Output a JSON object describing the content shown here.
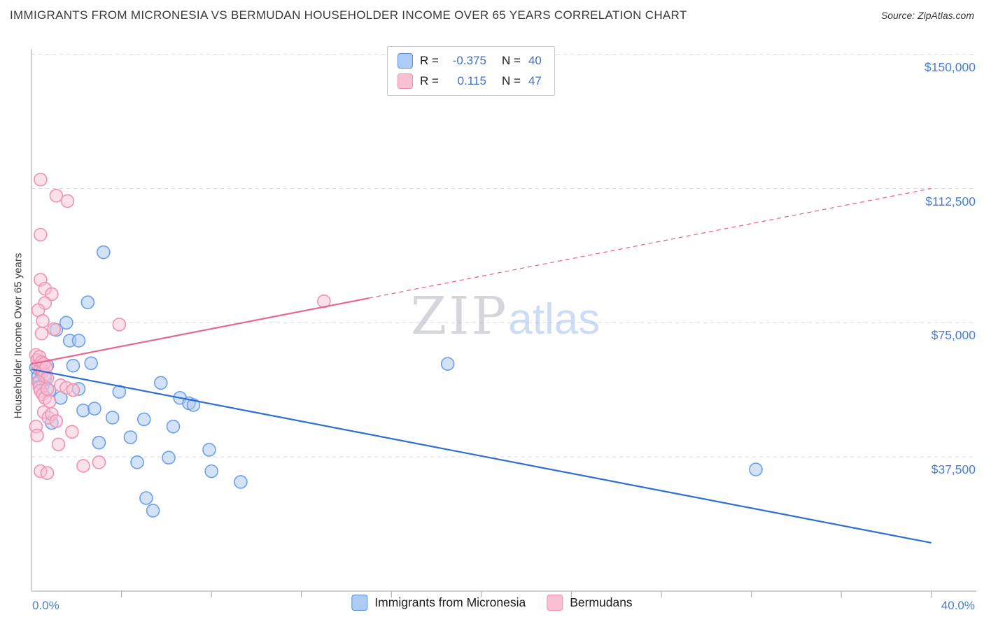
{
  "header": {
    "title": "IMMIGRANTS FROM MICRONESIA VS BERMUDAN HOUSEHOLDER INCOME OVER 65 YEARS CORRELATION CHART",
    "source": "Source: ZipAtlas.com"
  },
  "axes": {
    "y_label": "Householder Income Over 65 years",
    "y_ticks": [
      {
        "label": "$150,000",
        "value": 150000
      },
      {
        "label": "$112,500",
        "value": 112500
      },
      {
        "label": "$75,000",
        "value": 75000
      },
      {
        "label": "$37,500",
        "value": 37500
      }
    ],
    "x_min_label": "0.0%",
    "x_max_label": "40.0%"
  },
  "legend_box": {
    "rows": [
      {
        "r_label": "R =",
        "r": "-0.375",
        "n_label": "N =",
        "n": "40",
        "series": "Immigrants from Micronesia"
      },
      {
        "r_label": "R =",
        "r": "0.115",
        "n_label": "N =",
        "n": "47",
        "series": "Bermudans"
      }
    ]
  },
  "bottom_legend": [
    {
      "label": "Immigrants from Micronesia",
      "color": "blue"
    },
    {
      "label": "Bermudans",
      "color": "pink"
    }
  ],
  "watermark": {
    "part1": "ZIP",
    "part2": "atlas"
  },
  "colors": {
    "axis_text_blue": "#4a7fd4",
    "value_blue": "#3d6fc7",
    "blue_point_stroke": "#6d9eeb",
    "blue_point_fill": "#a8c7f0",
    "blue_trend": "#2e6fd0",
    "pink_point_stroke": "#f191b4",
    "pink_point_fill": "#f8c3d6",
    "pink_trend": "#e8678f",
    "gridline": "#dcdcdc",
    "axis_line": "#b5b5b5"
  },
  "chart_data": {
    "type": "scatter",
    "title": "Immigrants from Micronesia vs Bermudan Householder Income Over 65 years",
    "xlabel": "Immigrants from Micronesia (%)",
    "ylabel": "Householder Income Over 65 years ($)",
    "xlim": [
      0,
      40
    ],
    "ylim": [
      0,
      151500
    ],
    "x_overscan_max": 42,
    "grid": true,
    "legend_position": "top-center",
    "y_gridlines": [
      150000,
      112500,
      75000,
      37500
    ],
    "x_tick_step": 4,
    "series": [
      {
        "name": "Immigrants from Micronesia",
        "color": "#6d9eeb",
        "fill": "#a8c7f0",
        "trend_color": "#2e6fd0",
        "R": -0.375,
        "N": 40,
        "trend": {
          "x1": 0,
          "y1": 62000,
          "x2": 40,
          "y2": 13500,
          "solid_until_x": 40
        },
        "points": [
          [
            0.2,
            62500
          ],
          [
            0.3,
            60000
          ],
          [
            0.35,
            58500
          ],
          [
            0.45,
            61000
          ],
          [
            0.5,
            57500
          ],
          [
            0.6,
            59500
          ],
          [
            0.7,
            63000
          ],
          [
            0.8,
            56000
          ],
          [
            0.9,
            47000
          ],
          [
            1.1,
            73000
          ],
          [
            1.3,
            54000
          ],
          [
            1.55,
            75000
          ],
          [
            1.7,
            70000
          ],
          [
            1.85,
            63000
          ],
          [
            2.1,
            70000
          ],
          [
            2.1,
            56500
          ],
          [
            2.3,
            50500
          ],
          [
            2.5,
            80700
          ],
          [
            2.65,
            63700
          ],
          [
            2.8,
            51000
          ],
          [
            3.0,
            41500
          ],
          [
            3.2,
            94700
          ],
          [
            3.6,
            48500
          ],
          [
            3.9,
            55700
          ],
          [
            4.4,
            43000
          ],
          [
            4.7,
            36000
          ],
          [
            5.0,
            48000
          ],
          [
            5.1,
            26000
          ],
          [
            5.4,
            22500
          ],
          [
            5.75,
            58200
          ],
          [
            6.1,
            37300
          ],
          [
            6.3,
            46000
          ],
          [
            6.6,
            54000
          ],
          [
            7.0,
            52500
          ],
          [
            7.2,
            52000
          ],
          [
            7.9,
            39500
          ],
          [
            8.0,
            33500
          ],
          [
            9.3,
            30500
          ],
          [
            18.5,
            63500
          ],
          [
            32.2,
            34000
          ]
        ]
      },
      {
        "name": "Bermudans",
        "color": "#f191b4",
        "fill": "#f8c3d6",
        "trend_color": "#e8678f",
        "R": 0.115,
        "N": 47,
        "trend": {
          "x1": 0,
          "y1": 63500,
          "x2": 40,
          "y2": 112500,
          "solid_until_x": 15
        },
        "points": [
          [
            0.4,
            115000
          ],
          [
            1.1,
            110500
          ],
          [
            1.6,
            109000
          ],
          [
            0.4,
            99600
          ],
          [
            0.4,
            87000
          ],
          [
            0.6,
            84500
          ],
          [
            0.9,
            83000
          ],
          [
            0.6,
            80500
          ],
          [
            0.3,
            78500
          ],
          [
            0.5,
            75500
          ],
          [
            0.45,
            72000
          ],
          [
            1.0,
            73200
          ],
          [
            3.9,
            74500
          ],
          [
            13.0,
            81000
          ],
          [
            0.2,
            66000
          ],
          [
            0.25,
            64500
          ],
          [
            0.3,
            63000
          ],
          [
            0.35,
            65500
          ],
          [
            0.4,
            62000
          ],
          [
            0.45,
            64000
          ],
          [
            0.5,
            61500
          ],
          [
            0.55,
            63500
          ],
          [
            0.6,
            60500
          ],
          [
            0.65,
            62500
          ],
          [
            0.7,
            59500
          ],
          [
            0.3,
            58500
          ],
          [
            0.35,
            57000
          ],
          [
            0.4,
            56000
          ],
          [
            0.5,
            55000
          ],
          [
            0.6,
            54000
          ],
          [
            0.7,
            56500
          ],
          [
            0.8,
            53000
          ],
          [
            1.3,
            57500
          ],
          [
            1.55,
            56800
          ],
          [
            1.85,
            56200
          ],
          [
            0.55,
            50000
          ],
          [
            0.75,
            48500
          ],
          [
            0.9,
            49500
          ],
          [
            1.1,
            47500
          ],
          [
            0.2,
            46000
          ],
          [
            0.25,
            43500
          ],
          [
            1.8,
            44500
          ],
          [
            1.2,
            41000
          ],
          [
            3.0,
            36000
          ],
          [
            0.4,
            33500
          ],
          [
            0.7,
            33000
          ],
          [
            2.3,
            35000
          ]
        ]
      }
    ]
  }
}
